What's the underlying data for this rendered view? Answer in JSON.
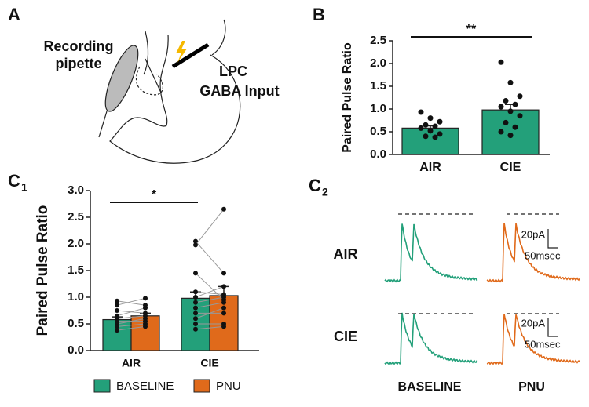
{
  "diagram": {
    "label": "A",
    "pipette_label": [
      "Recording",
      "pipette"
    ],
    "input_label": [
      "LPC",
      "GABA Input"
    ]
  },
  "chart_data": [
    {
      "type": "bar",
      "label": "B",
      "ylabel": "Paired Pulse Ratio",
      "categories": [
        "AIR",
        "CIE"
      ],
      "values": [
        0.58,
        0.98
      ],
      "errors": [
        0.05,
        0.12
      ],
      "color": "#23a07a",
      "points": [
        [
          0.93,
          0.8,
          0.72,
          0.65,
          0.62,
          0.58,
          0.52,
          0.45,
          0.4,
          0.38
        ],
        [
          2.03,
          1.58,
          1.28,
          1.18,
          1.1,
          1.05,
          0.95,
          0.85,
          0.7,
          0.6,
          0.5,
          0.42
        ]
      ],
      "ylim": [
        0,
        2.5
      ],
      "yticks": [
        {
          "value": 0,
          "label": "0.0"
        },
        0.5,
        {
          "value": 1,
          "label": "1.0"
        },
        1.5,
        {
          "value": 2,
          "label": "2.0"
        },
        2.5
      ],
      "significance": {
        "text": "**"
      }
    },
    {
      "type": "grouped_bar",
      "label": "C",
      "sublabel": "1",
      "ylabel": "Paired Pulse Ratio",
      "categories": [
        "AIR",
        "CIE"
      ],
      "series": [
        {
          "name": "BASELINE",
          "color": "#23a07a",
          "values": [
            0.58,
            0.98
          ],
          "errors": [
            0.05,
            0.12
          ],
          "points": [
            [
              0.93,
              0.85,
              0.75,
              0.65,
              0.6,
              0.55,
              0.5,
              0.45,
              0.38
            ],
            [
              2.05,
              1.98,
              1.45,
              1.1,
              1.0,
              0.9,
              0.8,
              0.7,
              0.6,
              0.5,
              0.4
            ]
          ]
        },
        {
          "name": "PNU",
          "color": "#e06a1b",
          "values": [
            0.65,
            1.03
          ],
          "errors": [
            0.05,
            0.17
          ],
          "points": [
            [
              0.85,
              0.98,
              0.7,
              0.8,
              0.65,
              0.55,
              0.6,
              0.5,
              0.45
            ],
            [
              1.45,
              2.65,
              0.95,
              1.05,
              1.2,
              1.0,
              0.9,
              0.7,
              0.8,
              0.5,
              0.45
            ]
          ]
        }
      ],
      "ylim": [
        0,
        3
      ],
      "yticks": [
        {
          "value": 0,
          "label": "0.0"
        },
        0.5,
        {
          "value": 1,
          "label": "1.0"
        },
        1.5,
        {
          "value": 2,
          "label": "2.0"
        },
        2.5,
        {
          "value": 3,
          "label": "3.0"
        }
      ],
      "significance": {
        "text": "*"
      },
      "legend": "bottom"
    }
  ],
  "traces": {
    "label": "C",
    "sublabel": "2",
    "rows": [
      "AIR",
      "CIE"
    ],
    "columns": [
      "BASELINE",
      "PNU"
    ],
    "colors": [
      "#23a07a",
      "#e06a1b"
    ],
    "scale_amplitude": "20pA",
    "scale_time": "50msec"
  }
}
